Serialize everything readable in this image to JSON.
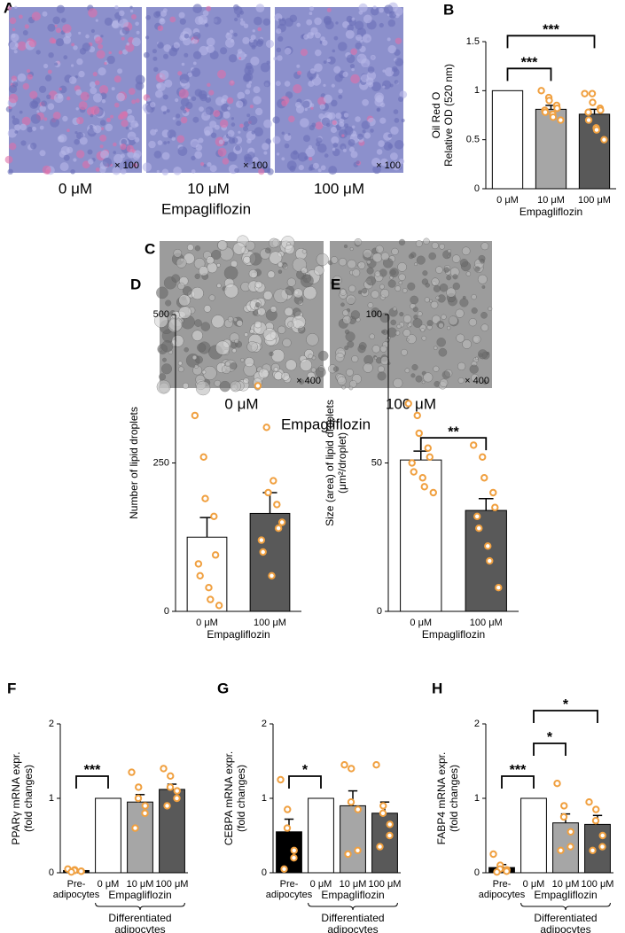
{
  "micrographs": [
    {
      "panel": "A",
      "labels": [
        "0 μM",
        "10 μM",
        "100 μM"
      ],
      "magnification": "× 100",
      "xlabel": "Empagliflozin"
    },
    {
      "panel": "C",
      "labels": [
        "0 μM",
        "100 μM"
      ],
      "magnification": "× 400",
      "xlabel": "Empagliflozin"
    }
  ],
  "chart_data": [
    {
      "type": "bar",
      "panel": "B",
      "ylabel": [
        "Oil Red O",
        "Relative OD (520 nm)"
      ],
      "categories": [
        "0 μM",
        "10 μM",
        "100 μM"
      ],
      "xlabel": "Empagliflozin",
      "values": [
        1,
        0.81,
        0.76
      ],
      "errors": [
        null,
        0.04,
        0.05
      ],
      "colors": [
        "#ffffff",
        "#a6a6a6",
        "#595959"
      ],
      "points": [
        [],
        [
          1.0,
          0.93,
          0.9,
          0.85,
          0.82,
          0.8,
          0.78,
          0.76,
          0.73,
          0.7
        ],
        [
          0.97,
          0.97,
          0.88,
          0.82,
          0.8,
          0.78,
          0.7,
          0.62,
          0.6,
          0.5
        ]
      ],
      "point_color": "#f0a040",
      "ylim": [
        0,
        1.5
      ],
      "yticks": [
        0,
        0.5,
        1,
        1.5
      ],
      "significance": [
        {
          "from": 0,
          "to": 1,
          "label": "***"
        },
        {
          "from": 0,
          "to": 2,
          "label": "***"
        }
      ]
    },
    {
      "type": "bar",
      "panel": "D",
      "ylabel": [
        "Number of lipid droplets"
      ],
      "categories": [
        "0 μM",
        "100 μM"
      ],
      "xlabel": "Empagliflozin",
      "values": [
        125,
        165
      ],
      "errors": [
        33,
        35
      ],
      "colors": [
        "#ffffff",
        "#595959"
      ],
      "points": [
        [
          330,
          260,
          190,
          160,
          95,
          80,
          60,
          40,
          20,
          10
        ],
        [
          380,
          310,
          200,
          180,
          140,
          120,
          100,
          60,
          220,
          150
        ]
      ],
      "point_color": "#f0a040",
      "ylim": [
        0,
        500
      ],
      "yticks": [
        0,
        250,
        500
      ],
      "significance": []
    },
    {
      "type": "bar",
      "panel": "E",
      "ylabel": [
        "Size (area) of lipid droplets",
        "(μm²/droplet)"
      ],
      "categories": [
        "0 μM",
        "100 μM"
      ],
      "xlabel": "Empagliflozin",
      "values": [
        51,
        34
      ],
      "errors": [
        3,
        4
      ],
      "colors": [
        "#ffffff",
        "#595959"
      ],
      "points": [
        [
          70,
          66,
          60,
          55,
          52,
          50,
          47,
          45,
          42,
          40
        ],
        [
          56,
          52,
          45,
          40,
          35,
          32,
          28,
          22,
          17,
          8
        ]
      ],
      "point_color": "#f0a040",
      "ylim": [
        0,
        100
      ],
      "yticks": [
        0,
        50,
        100
      ],
      "significance": [
        {
          "from": 0,
          "to": 1,
          "label": "**"
        }
      ]
    },
    {
      "type": "bar",
      "panel": "F",
      "ylabel": [
        "PPARγ mRNA expr.",
        "(fold changes)"
      ],
      "categories": [
        "Pre-\nadipocytes",
        "0 μM",
        "10 μM",
        "100 μM"
      ],
      "xlabel": "Empagliflozin",
      "group_label": "Differentiated\nadipocytes",
      "values": [
        0.03,
        1,
        0.95,
        1.12
      ],
      "errors": [
        0.01,
        null,
        0.1,
        0.07
      ],
      "colors": [
        "#000000",
        "#ffffff",
        "#a6a6a6",
        "#595959"
      ],
      "points": [
        [
          0.05,
          0.04,
          0.03,
          0.02,
          0.02,
          0.01
        ],
        [],
        [
          1.35,
          1.15,
          1.0,
          0.9,
          0.8,
          0.6
        ],
        [
          1.4,
          1.3,
          1.15,
          1.1,
          1.0,
          0.9
        ]
      ],
      "point_color": "#f0a040",
      "ylim": [
        0,
        2
      ],
      "yticks": [
        0,
        1,
        2
      ],
      "significance": [
        {
          "from": 0,
          "to": 1,
          "label": "***"
        }
      ]
    },
    {
      "type": "bar",
      "panel": "G",
      "ylabel": [
        "CEBPA mRNA expr.",
        "(fold changes)"
      ],
      "categories": [
        "Pre-\nadipocytes",
        "0 μM",
        "10 μM",
        "100 μM"
      ],
      "xlabel": "Empagliflozin",
      "group_label": "Differentiated\nadipocytes",
      "values": [
        0.55,
        1,
        0.9,
        0.8
      ],
      "errors": [
        0.17,
        null,
        0.2,
        0.15
      ],
      "colors": [
        "#000000",
        "#ffffff",
        "#a6a6a6",
        "#595959"
      ],
      "points": [
        [
          1.25,
          0.85,
          0.6,
          0.3,
          0.2,
          0.05
        ],
        [],
        [
          1.45,
          1.4,
          0.95,
          0.85,
          0.3,
          0.25
        ],
        [
          1.45,
          0.9,
          0.8,
          0.65,
          0.5,
          0.35
        ]
      ],
      "point_color": "#f0a040",
      "ylim": [
        0,
        2
      ],
      "yticks": [
        0,
        1,
        2
      ],
      "significance": [
        {
          "from": 0,
          "to": 1,
          "label": "*"
        }
      ]
    },
    {
      "type": "bar",
      "panel": "H",
      "ylabel": [
        "FABP4 mRNA expr.",
        "(fold changes)"
      ],
      "categories": [
        "Pre-\nadipocytes",
        "0 μM",
        "10 μM",
        "100 μM"
      ],
      "xlabel": "Empagliflozin",
      "group_label": "Differentiated\nadipocytes",
      "values": [
        0.07,
        1,
        0.67,
        0.65
      ],
      "errors": [
        0.04,
        null,
        0.12,
        0.12
      ],
      "colors": [
        "#000000",
        "#ffffff",
        "#a6a6a6",
        "#595959"
      ],
      "points": [
        [
          0.25,
          0.1,
          0.05,
          0.04,
          0.02,
          0.01
        ],
        [],
        [
          1.2,
          0.9,
          0.75,
          0.55,
          0.35,
          0.3
        ],
        [
          0.95,
          0.85,
          0.7,
          0.5,
          0.35,
          0.3
        ]
      ],
      "point_color": "#f0a040",
      "ylim": [
        0,
        2
      ],
      "yticks": [
        0,
        1,
        2
      ],
      "significance": [
        {
          "from": 0,
          "to": 1,
          "label": "***"
        },
        {
          "from": 1,
          "to": 2,
          "label": "*"
        },
        {
          "from": 1,
          "to": 3,
          "label": "*"
        }
      ]
    }
  ]
}
